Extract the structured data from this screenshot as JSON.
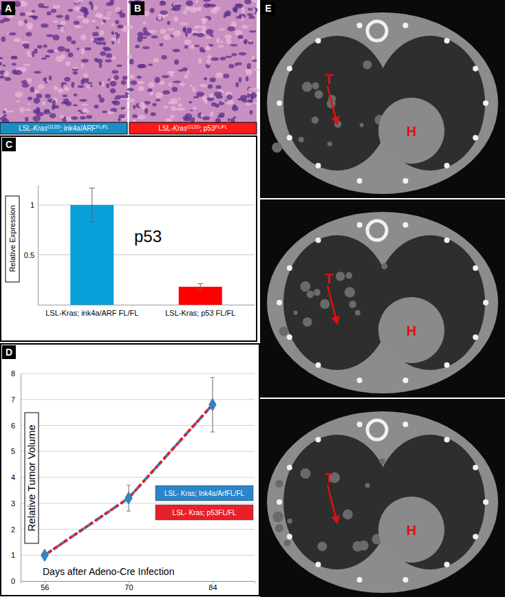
{
  "panels": [
    {
      "letter": "A",
      "caption_color": "#1a8fc6",
      "caption": [
        {
          "text": "LSL-"
        },
        {
          "text": "Kras"
        },
        {
          "text": "G12D",
          "sup": true
        },
        {
          "text": "; ink4a/ARF"
        },
        {
          "text": "FL/FL",
          "sup": true
        }
      ]
    },
    {
      "letter": "B",
      "caption_color": "#ff1a1a",
      "caption": [
        {
          "text": "LSL-"
        },
        {
          "text": "Kras"
        },
        {
          "text": "G12D",
          "sup": true
        },
        {
          "text": "; p53"
        },
        {
          "text": "FL/FL",
          "sup": true
        }
      ]
    },
    {
      "letter": "C"
    },
    {
      "letter": "D"
    },
    {
      "letter": "E",
      "images": [
        {
          "tumor_label": "T",
          "heart_label": "H"
        },
        {
          "tumor_label": "T",
          "heart_label": "H"
        },
        {
          "tumor_label": "T",
          "heart_label": "H"
        }
      ]
    }
  ],
  "chart_data": [
    {
      "type": "bar",
      "title": "p53",
      "y_label": "Relative Expression",
      "categories": [
        "LSL-Kras; ink4a/ARF FL/FL",
        "LSL-Kras; p53 FL/FL"
      ],
      "values": [
        1,
        0.18
      ],
      "errors": [
        0.17,
        0.03
      ],
      "colors": [
        "#0aa0da",
        "#ff0000"
      ],
      "ylim": [
        0,
        1.2
      ],
      "yticks": [
        0.5,
        1
      ],
      "grid": true
    },
    {
      "type": "line",
      "x_label": "Days after Adeno-Cre Infection",
      "y_label": "Relative Tumor Volume",
      "x": [
        56,
        70,
        84
      ],
      "series": [
        {
          "name": "LSL- Kras; Ink4a/ArfFL/FL",
          "color": "#2a86c8",
          "line_style": "dashed",
          "marker": "diamond",
          "values": [
            1,
            3.2,
            6.8
          ],
          "errors": [
            0,
            0.5,
            1.05
          ]
        },
        {
          "name": "LSL- Kras; p53FL/FL",
          "color": "#e8202a",
          "line_style": "dotted",
          "marker": "diamond",
          "values": [
            1,
            3.2,
            6.8
          ],
          "errors": [
            0,
            0.5,
            1.05
          ]
        }
      ],
      "xlim": [
        52,
        91
      ],
      "ylim": [
        0,
        8
      ],
      "xticks": [
        56,
        70,
        84
      ],
      "yticks": [
        0,
        1,
        2,
        3,
        4,
        5,
        6,
        7,
        8
      ],
      "grid": true,
      "legend": "right"
    }
  ]
}
